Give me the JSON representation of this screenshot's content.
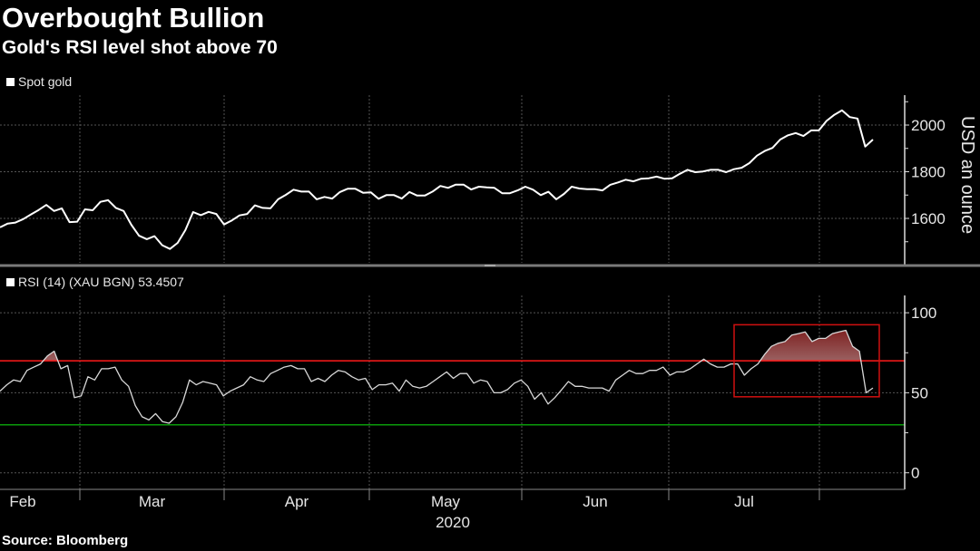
{
  "header": {
    "title": "Overbought Bullion",
    "subtitle": "Gold's RSI level shot above 70"
  },
  "source": "Source: Bloomberg",
  "colors": {
    "background": "#000000",
    "line": "#ffffff",
    "overbought": "#ff1a1a",
    "oversold": "#0a9a0a",
    "highlight_fill_top": "#6e0000",
    "highlight_fill_bottom": "#9a6060",
    "grid": "#555555"
  },
  "chart_data": [
    {
      "type": "line",
      "title": "Spot gold",
      "legend": "Spot gold",
      "ylabel": "USD an ounce",
      "yticks": [
        "1600",
        "1800",
        "2000"
      ],
      "ylim": [
        1420,
        2130
      ],
      "xlabel": "2020",
      "xticks": [
        "Feb",
        "Mar",
        "Apr",
        "May",
        "Jun",
        "Jul"
      ],
      "grid": true,
      "series": [
        {
          "name": "Spot gold",
          "values": [
            1562,
            1578,
            1582,
            1597,
            1617,
            1636,
            1658,
            1632,
            1643,
            1584,
            1586,
            1639,
            1635,
            1671,
            1678,
            1645,
            1632,
            1573,
            1526,
            1511,
            1524,
            1485,
            1469,
            1495,
            1550,
            1627,
            1614,
            1628,
            1619,
            1574,
            1591,
            1613,
            1619,
            1656,
            1645,
            1643,
            1682,
            1701,
            1723,
            1715,
            1715,
            1682,
            1692,
            1685,
            1713,
            1727,
            1727,
            1710,
            1712,
            1684,
            1700,
            1700,
            1685,
            1713,
            1698,
            1698,
            1715,
            1739,
            1731,
            1745,
            1745,
            1724,
            1736,
            1733,
            1731,
            1708,
            1708,
            1720,
            1736,
            1723,
            1700,
            1714,
            1682,
            1705,
            1736,
            1728,
            1725,
            1725,
            1720,
            1744,
            1754,
            1766,
            1759,
            1770,
            1772,
            1779,
            1770,
            1772,
            1791,
            1808,
            1798,
            1801,
            1808,
            1808,
            1798,
            1811,
            1817,
            1837,
            1869,
            1889,
            1902,
            1938,
            1956,
            1966,
            1953,
            1977,
            1977,
            2018,
            2044,
            2063,
            2034,
            2028,
            1908,
            1938
          ]
        }
      ]
    },
    {
      "type": "line",
      "title": "RSI (14) (XAU BGN)",
      "legend": "RSI (14) (XAU BGN) 53.4507",
      "last_value": 53.4507,
      "yticks": [
        "0",
        "50",
        "100"
      ],
      "ylim": [
        0,
        100
      ],
      "overbought_level": 70,
      "oversold_level": 30,
      "xticks": [
        "Feb",
        "Mar",
        "Apr",
        "May",
        "Jun",
        "Jul"
      ],
      "xlabel": "2020",
      "grid": true,
      "annotation": "highlight box around late-July/early-August overbought period",
      "series": [
        {
          "name": "RSI (14)",
          "values": [
            51,
            55,
            58,
            57,
            64,
            66,
            68,
            73,
            76,
            65,
            67,
            47,
            48,
            60,
            58,
            65,
            65,
            66,
            58,
            54,
            42,
            35,
            33,
            37,
            32,
            31,
            35,
            44,
            58,
            55,
            57,
            56,
            55,
            48,
            51,
            53,
            55,
            60,
            58,
            57,
            62,
            64,
            66,
            67,
            65,
            65,
            57,
            59,
            57,
            61,
            64,
            63,
            60,
            58,
            59,
            52,
            55,
            55,
            56,
            51,
            58,
            54,
            53,
            54,
            57,
            60,
            63,
            59,
            62,
            62,
            56,
            58,
            57,
            50,
            50,
            52,
            56,
            58,
            54,
            46,
            50,
            43,
            47,
            52,
            57,
            54,
            54,
            53,
            53,
            53,
            51,
            58,
            61,
            64,
            62,
            62,
            64,
            64,
            66,
            61,
            63,
            63,
            65,
            68,
            71,
            68,
            66,
            66,
            68,
            68,
            61,
            65,
            68,
            74,
            79,
            81,
            82,
            86,
            87,
            88,
            82,
            84,
            84,
            87,
            88,
            89,
            79,
            76,
            50,
            53
          ]
        }
      ]
    }
  ]
}
